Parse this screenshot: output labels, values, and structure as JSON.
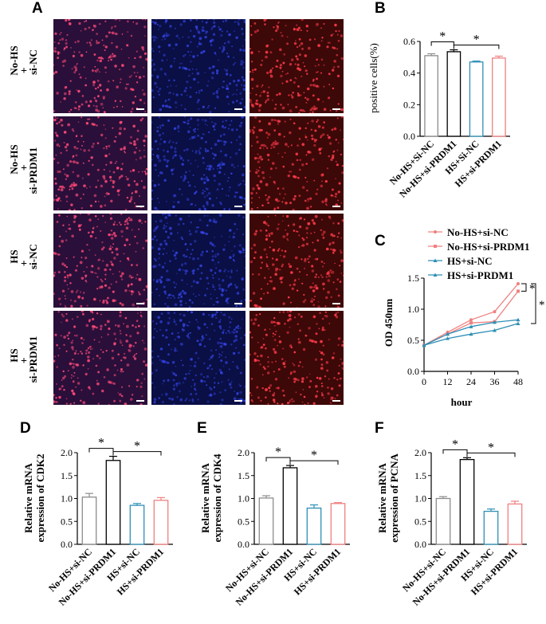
{
  "panels": {
    "A": "A",
    "B": "B",
    "C": "C",
    "D": "D",
    "E": "E",
    "F": "F"
  },
  "microscopy": {
    "rows": [
      {
        "condition": "No-HS",
        "plus": "+",
        "treatment": "si-NC"
      },
      {
        "condition": "No-HS",
        "plus": "+",
        "treatment": "si-PRDM1"
      },
      {
        "condition": "HS",
        "plus": "+",
        "treatment": "si-NC"
      },
      {
        "condition": "HS",
        "plus": "+",
        "treatment": "si-PRDM1"
      }
    ],
    "channels": [
      "merge",
      "blue",
      "red"
    ],
    "colors": {
      "merge_bg": "#2a0f3a",
      "blue_bg": "#0a0f45",
      "red_bg": "#3d0808",
      "red_dot": "#ff3b4a",
      "blue_dot": "#3a4cff",
      "merge_dot": "#ff4a78"
    }
  },
  "colors": {
    "grey": "#8c8c8c",
    "black": "#000000",
    "blue": "#2e8fb5",
    "pink": "#f08080"
  },
  "chart_data": [
    {
      "panel": "B",
      "type": "bar",
      "categories": [
        "No-HS+Si-NC",
        "No-HS+si-PRDM1",
        "HS+Si-NC",
        "HS+si-PRDM1"
      ],
      "values": [
        0.51,
        0.535,
        0.47,
        0.495
      ],
      "errors": [
        0.012,
        0.012,
        0.006,
        0.012
      ],
      "ylabel": "positive cells(%)",
      "ylim": [
        0,
        0.6
      ],
      "yticks": [
        "0.0",
        "0.2",
        "0.4",
        "0.6"
      ],
      "significance": [
        "*",
        "*"
      ]
    },
    {
      "panel": "C",
      "type": "line",
      "x": [
        0,
        12,
        24,
        36,
        48
      ],
      "xticks": [
        "0",
        "12",
        "24",
        "36",
        "48"
      ],
      "xlabel": "hour",
      "ylabel": "OD 450nm",
      "ylim": [
        0,
        1.5
      ],
      "yticks": [
        "0.0",
        "0.5",
        "1.0",
        "1.5"
      ],
      "series": [
        {
          "name": "No-HS+si-NC",
          "values": [
            0.42,
            0.63,
            0.83,
            0.96,
            1.41
          ]
        },
        {
          "name": "No-HS+si-PRDM1",
          "values": [
            0.42,
            0.6,
            0.78,
            0.8,
            1.29
          ]
        },
        {
          "name": "HS+si-NC",
          "values": [
            0.42,
            0.6,
            0.72,
            0.79,
            0.83
          ]
        },
        {
          "name": "HS+si-PRDM1",
          "values": [
            0.42,
            0.53,
            0.6,
            0.66,
            0.77
          ]
        }
      ],
      "significance": [
        "*",
        "*"
      ]
    },
    {
      "panel": "D",
      "type": "bar",
      "categories": [
        "No-HS+si-NC",
        "No-HS+si-PRDM1",
        "HS+si-NC",
        "HS+si-PRDM1"
      ],
      "values": [
        1.03,
        1.83,
        0.85,
        0.96
      ],
      "errors": [
        0.08,
        0.09,
        0.04,
        0.06
      ],
      "ylabel": "Relative mRNA expression of CDK2",
      "ylabel_lines": [
        "Relative mRNA",
        "expression of CDK2"
      ],
      "ylim": [
        0,
        2.0
      ],
      "yticks": [
        "0.0",
        "0.5",
        "1.0",
        "1.5",
        "2.0"
      ],
      "significance": [
        "*",
        "*"
      ]
    },
    {
      "panel": "E",
      "type": "bar",
      "categories": [
        "No-HS+si-NC",
        "No-HS+si-PRDM1",
        "HS+si-NC",
        "HS+si-PRDM1"
      ],
      "values": [
        1.01,
        1.67,
        0.79,
        0.89
      ],
      "errors": [
        0.05,
        0.05,
        0.07,
        0.02
      ],
      "ylabel": "Relative mRNA expression of CDK4",
      "ylabel_lines": [
        "Relative mRNA",
        "expression of CDK4"
      ],
      "ylim": [
        0,
        2.0
      ],
      "yticks": [
        "0.0",
        "0.5",
        "1.0",
        "1.5",
        "2.0"
      ],
      "significance": [
        "*",
        "*"
      ]
    },
    {
      "panel": "F",
      "type": "bar",
      "categories": [
        "No-HS+si-NC",
        "No-HS+si-PRDM1",
        "HS+si-NC",
        "HS+si-PRDM1"
      ],
      "values": [
        1.0,
        1.85,
        0.72,
        0.88
      ],
      "errors": [
        0.04,
        0.04,
        0.05,
        0.06
      ],
      "ylabel": "Relative mRNA expression of PCNA",
      "ylabel_lines": [
        "Relative mRNA",
        "expression of PCNA"
      ],
      "ylim": [
        0,
        2.0
      ],
      "yticks": [
        "0.0",
        "0.5",
        "1.0",
        "1.5",
        "2.0"
      ],
      "significance": [
        "*",
        "*"
      ]
    }
  ]
}
